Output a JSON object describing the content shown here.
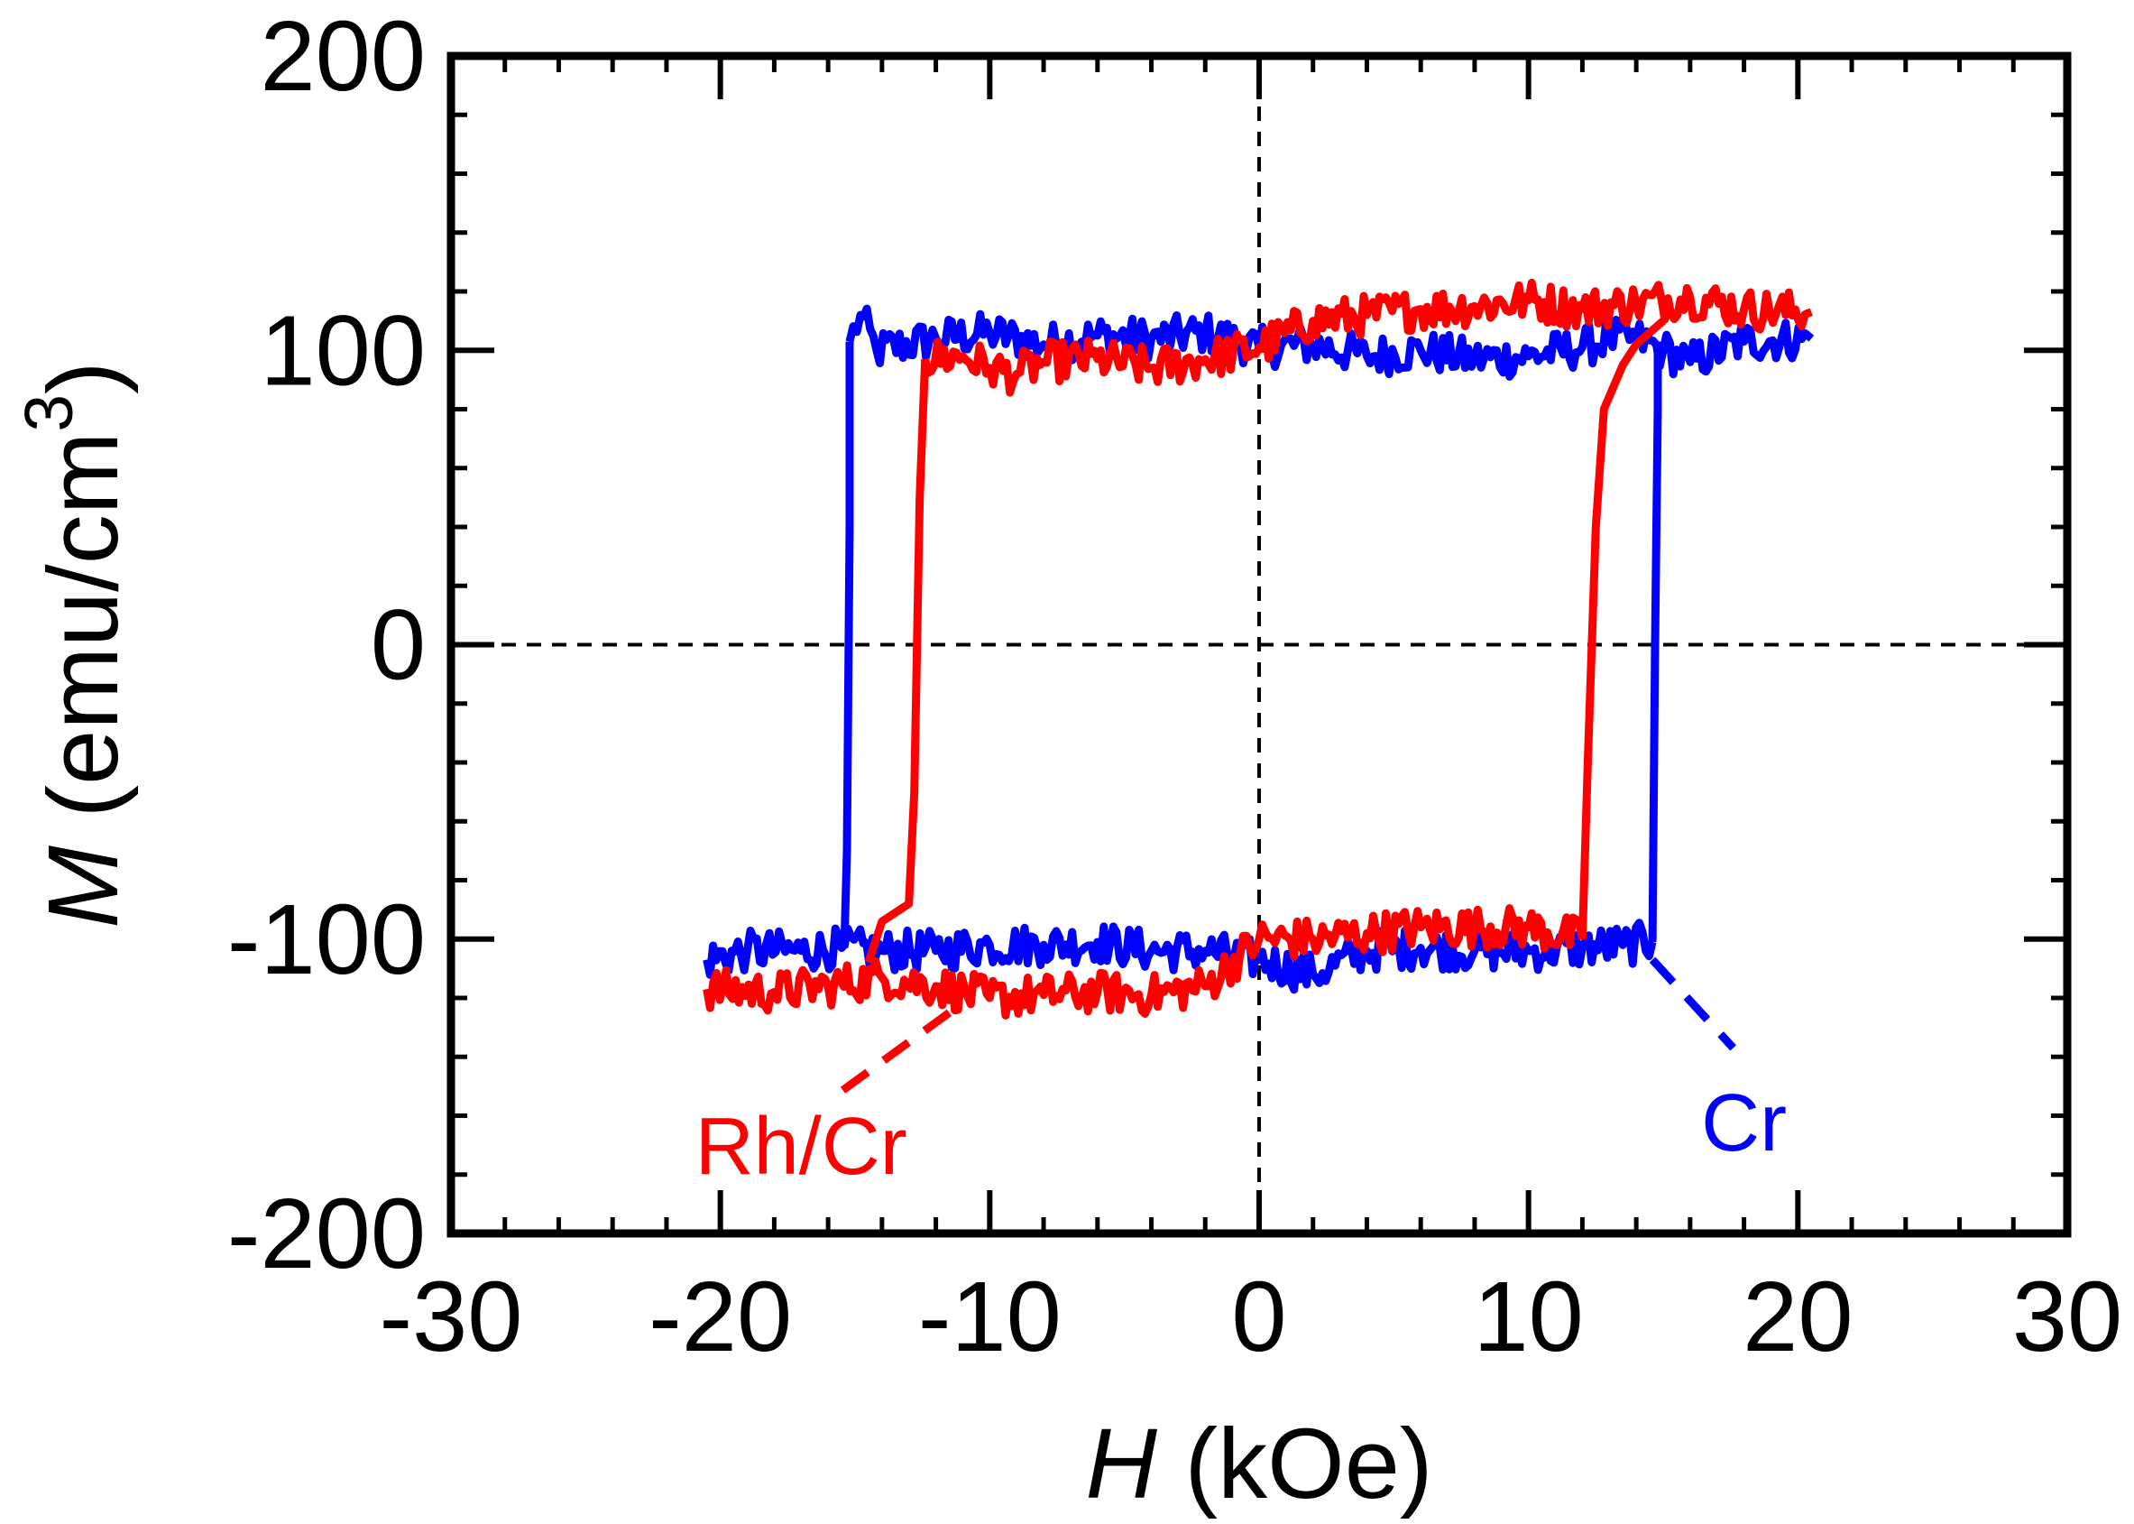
{
  "chart_data": {
    "type": "line",
    "title": "",
    "xlabel_var": "H",
    "xlabel_unit": " (kOe)",
    "ylabel_var": "M",
    "ylabel_unit": " (emu/cm",
    "ylabel_sup": "3",
    "ylabel_close": ")",
    "xlim": [
      -30,
      30
    ],
    "ylim": [
      -200,
      200
    ],
    "xticks": [
      -30,
      -20,
      -10,
      0,
      10,
      20,
      30
    ],
    "yticks": [
      -200,
      -100,
      0,
      100,
      200
    ],
    "xtick_labels": [
      "-30",
      "-20",
      "-10",
      "0",
      "10",
      "20",
      "30"
    ],
    "ytick_labels": [
      "-200",
      "-100",
      "0",
      "100",
      "200"
    ],
    "x_minor_step": 2,
    "y_minor_step": 20,
    "zero_lines": "dashed",
    "grid": false,
    "series": [
      {
        "name": "Cr",
        "color": "#0000ff",
        "upper_branch": [
          [
            -15.2,
            103
          ],
          [
            -14.8,
            112
          ],
          [
            -14.2,
            100
          ],
          [
            -12,
            104
          ],
          [
            -10,
            106
          ],
          [
            -8,
            102
          ],
          [
            -6,
            105
          ],
          [
            -4,
            104
          ],
          [
            -2,
            106
          ],
          [
            0,
            101
          ],
          [
            2,
            102
          ],
          [
            4,
            98
          ],
          [
            6,
            100
          ],
          [
            8,
            97
          ],
          [
            10,
            98
          ],
          [
            12,
            101
          ],
          [
            13,
            104
          ],
          [
            14,
            104
          ],
          [
            15,
            100
          ],
          [
            16,
            96
          ],
          [
            18,
            103
          ],
          [
            20.5,
            104
          ]
        ],
        "lower_branch": [
          [
            -20.5,
            -107
          ],
          [
            -19,
            -104
          ],
          [
            -17,
            -104
          ],
          [
            -15.5,
            -103
          ],
          [
            -14,
            -104
          ],
          [
            -12,
            -104
          ],
          [
            -10,
            -102
          ],
          [
            -8,
            -102
          ],
          [
            -6,
            -101
          ],
          [
            -4,
            -104
          ],
          [
            -2,
            -104
          ],
          [
            0,
            -107
          ],
          [
            2,
            -112
          ],
          [
            4,
            -104
          ],
          [
            6,
            -103
          ],
          [
            8,
            -104
          ],
          [
            10,
            -104
          ],
          [
            12,
            -103
          ],
          [
            13.5,
            -102
          ],
          [
            14.6,
            -101
          ]
        ],
        "switch_down": [
          [
            -15.2,
            103
          ],
          [
            -15.2,
            40
          ],
          [
            -15.3,
            -70
          ],
          [
            -15.4,
            -103
          ]
        ],
        "switch_up": [
          [
            14.6,
            -101
          ],
          [
            14.7,
            0
          ],
          [
            14.8,
            80
          ],
          [
            14.8,
            103
          ]
        ],
        "label": "Cr",
        "label_anchor": [
          18,
          -162
        ],
        "leader": [
          [
            14.6,
            -107
          ],
          [
            17.6,
            -137
          ]
        ]
      },
      {
        "name": "Rh/Cr",
        "color": "#ff0000",
        "upper_branch": [
          [
            -12.4,
            97
          ],
          [
            -11,
            98
          ],
          [
            -10,
            94
          ],
          [
            -9,
            92
          ],
          [
            -8,
            96
          ],
          [
            -6,
            97
          ],
          [
            -4,
            94
          ],
          [
            -2,
            97
          ],
          [
            0,
            101
          ],
          [
            2,
            110
          ],
          [
            4,
            112
          ],
          [
            6,
            114
          ],
          [
            8,
            115
          ],
          [
            10,
            117
          ],
          [
            12,
            114
          ],
          [
            14,
            116
          ],
          [
            16,
            118
          ],
          [
            18,
            114
          ],
          [
            20.5,
            113
          ]
        ],
        "lower_branch": [
          [
            -20.5,
            -117
          ],
          [
            -18,
            -118
          ],
          [
            -16,
            -116
          ],
          [
            -14,
            -113
          ],
          [
            -12,
            -116
          ],
          [
            -10,
            -120
          ],
          [
            -8,
            -119
          ],
          [
            -6,
            -118
          ],
          [
            -4,
            -119
          ],
          [
            -2,
            -116
          ],
          [
            0,
            -100
          ],
          [
            2,
            -100
          ],
          [
            4,
            -98
          ],
          [
            6,
            -96
          ],
          [
            8,
            -96
          ],
          [
            10,
            -96
          ],
          [
            12,
            -100
          ]
        ],
        "switch_down": [
          [
            -12.4,
            97
          ],
          [
            -12.6,
            50
          ],
          [
            -12.8,
            -50
          ],
          [
            -13.0,
            -88
          ],
          [
            -14,
            -94
          ],
          [
            -14.5,
            -108
          ]
        ],
        "switch_up": [
          [
            12,
            -100
          ],
          [
            12.2,
            -40
          ],
          [
            12.5,
            40
          ],
          [
            12.8,
            80
          ],
          [
            13.5,
            95
          ],
          [
            14,
            102
          ],
          [
            15,
            110
          ]
        ],
        "label": "Rh/Cr",
        "label_anchor": [
          -17,
          -170
        ],
        "leader": [
          [
            -11.5,
            -125
          ],
          [
            -16,
            -155
          ]
        ]
      }
    ]
  }
}
